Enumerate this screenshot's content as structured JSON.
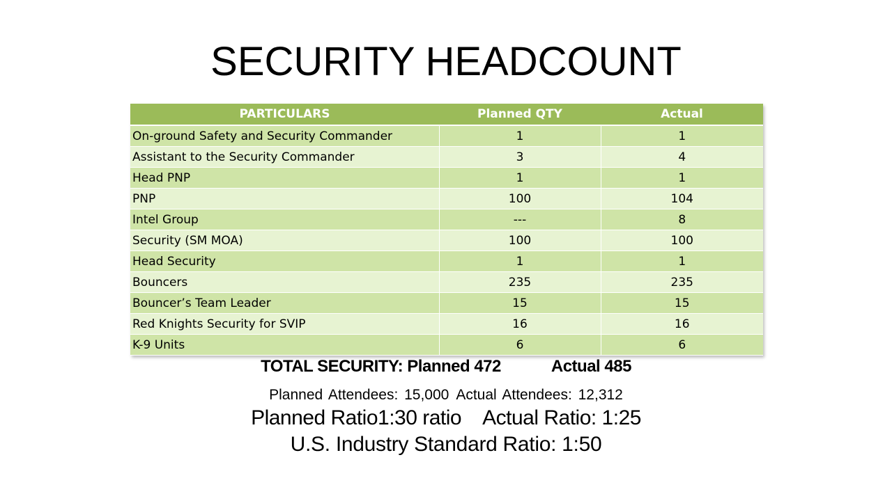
{
  "title": "SECURITY HEADCOUNT",
  "table": {
    "headers": [
      "PARTICULARS",
      "Planned QTY",
      "Actual"
    ],
    "rows": [
      [
        "On-ground Safety and Security Commander",
        "1",
        "1"
      ],
      [
        "Assistant to the Security Commander",
        "3",
        "4"
      ],
      [
        "Head PNP",
        "1",
        "1"
      ],
      [
        "PNP",
        "100",
        "104"
      ],
      [
        "Intel Group",
        "---",
        "8"
      ],
      [
        "Security (SM MOA)",
        "100",
        "100"
      ],
      [
        "Head Security",
        "1",
        "1"
      ],
      [
        "Bouncers",
        "235",
        "235"
      ],
      [
        "Bouncer’s Team Leader",
        "15",
        "15"
      ],
      [
        "Red Knights Security for SVIP",
        "16",
        "16"
      ],
      [
        "K-9 Units",
        "6",
        "6"
      ]
    ]
  },
  "summary": {
    "total_label": "TOTAL SECURITY:",
    "total_planned": "Planned 472",
    "total_actual": "Actual 485",
    "planned_attendees": "Planned Attendees: 15,000",
    "actual_attendees": "Actual Attendees: 12,312",
    "planned_ratio": "Planned Ratio1:30 ratio",
    "actual_ratio": "Actual Ratio: 1:25",
    "industry_standard": "U.S. Industry Standard Ratio: 1:50"
  },
  "colors": {
    "header": "#9bbb59",
    "row_dark": "#cfe4a7",
    "row_light": "#e7f3d2"
  }
}
